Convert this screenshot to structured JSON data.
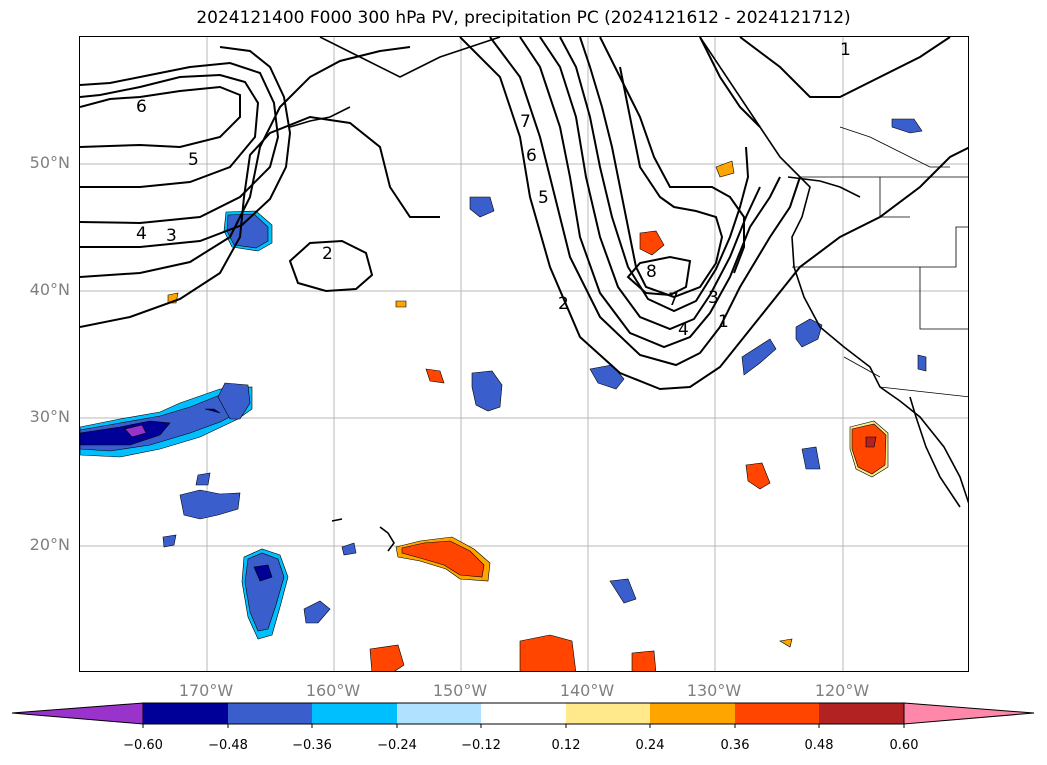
{
  "title": "2024121400 F000 300 hPa PV, precipitation PC (2024121612 - 2024121712)",
  "map": {
    "projection": "PlateCarree",
    "lon_range": [
      -180,
      -110
    ],
    "lat_range": [
      10,
      60
    ],
    "gridlines": true,
    "lat_labels": [
      "50°N",
      "40°N",
      "30°N",
      "20°N"
    ],
    "lon_labels": [
      "170°W",
      "160°W",
      "150°W",
      "140°W",
      "130°W",
      "120°W"
    ],
    "coastline_color": "#000000",
    "contour_labels": [
      "6",
      "5",
      "4",
      "3",
      "2",
      "7",
      "6",
      "5",
      "2",
      "8",
      "7",
      "3",
      "4",
      "1",
      "1"
    ],
    "contour_variable": "300 hPa PV",
    "fill_variable": "precipitation PC"
  },
  "colorbar": {
    "tick_labels": [
      "−0.60",
      "−0.48",
      "−0.36",
      "−0.24",
      "−0.12",
      "0.12",
      "0.24",
      "0.36",
      "0.48",
      "0.60"
    ],
    "colors": [
      "#9933cc",
      "#000099",
      "#3a5fcd",
      "#00bfff",
      "#b0e2ff",
      "#ffffff",
      "#ffe98a",
      "#ffa500",
      "#ff4500",
      "#b22222",
      "#ff88aa"
    ]
  }
}
